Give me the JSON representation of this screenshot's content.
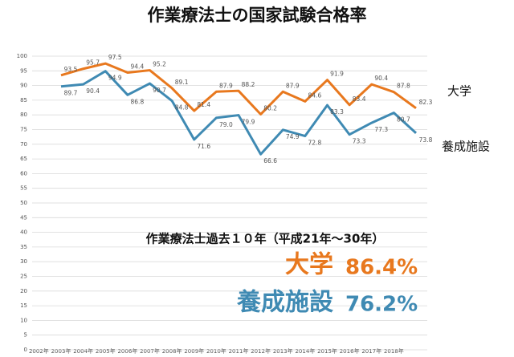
{
  "chart_data": {
    "type": "line",
    "title": "作業療法士の国家試験合格率",
    "categories": [
      "2002年",
      "2003年",
      "2004年",
      "2005年",
      "2006年",
      "2007年",
      "2008年",
      "2009年",
      "2010年",
      "2011年",
      "2012年",
      "2013年",
      "2014年",
      "2015年",
      "2016年",
      "2017年",
      "2018年"
    ],
    "series": [
      {
        "name": "大学",
        "color": "#e8781e",
        "values": [
          93.5,
          95.7,
          97.5,
          94.4,
          95.2,
          89.1,
          81.4,
          87.9,
          88.2,
          80.2,
          87.9,
          84.6,
          91.9,
          83.4,
          90.4,
          87.8,
          82.3
        ],
        "value_labels": [
          "93.5",
          "95.7",
          "97.5",
          "94.4",
          "95.2",
          "89.1",
          "81.4",
          "87.9",
          "88.2",
          "80.2",
          "87.9",
          "84.6",
          "91.9",
          "83.4",
          "90.4",
          "87.8",
          "82.3"
        ]
      },
      {
        "name": "養成施設",
        "color": "#3f8ab3",
        "values": [
          89.7,
          90.4,
          94.9,
          86.8,
          90.7,
          84.8,
          71.6,
          79.0,
          79.9,
          66.6,
          74.9,
          72.8,
          83.3,
          73.3,
          77.3,
          80.7,
          73.8
        ],
        "value_labels": [
          "89.7",
          "90.4",
          "94.9",
          "86.8",
          "90.7",
          "84.8",
          "71.6",
          "79.0",
          "79.9",
          "66.6",
          "74.9",
          "72.8",
          "83.3",
          "73.3",
          "77.3",
          "80.7",
          "73.8"
        ]
      }
    ],
    "ylim": [
      0,
      100
    ],
    "yticks": [
      0,
      5,
      10,
      15,
      20,
      25,
      30,
      35,
      40,
      45,
      50,
      55,
      60,
      65,
      70,
      75,
      80,
      85,
      90,
      95,
      100
    ],
    "grid": true,
    "annotations": {
      "subtitle": "作業療法士過去１０年（平成21年～30年）",
      "lines": [
        {
          "label": "大学",
          "rate": "86.4%"
        },
        {
          "label": "養成施設",
          "rate": "76.2%"
        }
      ]
    }
  }
}
